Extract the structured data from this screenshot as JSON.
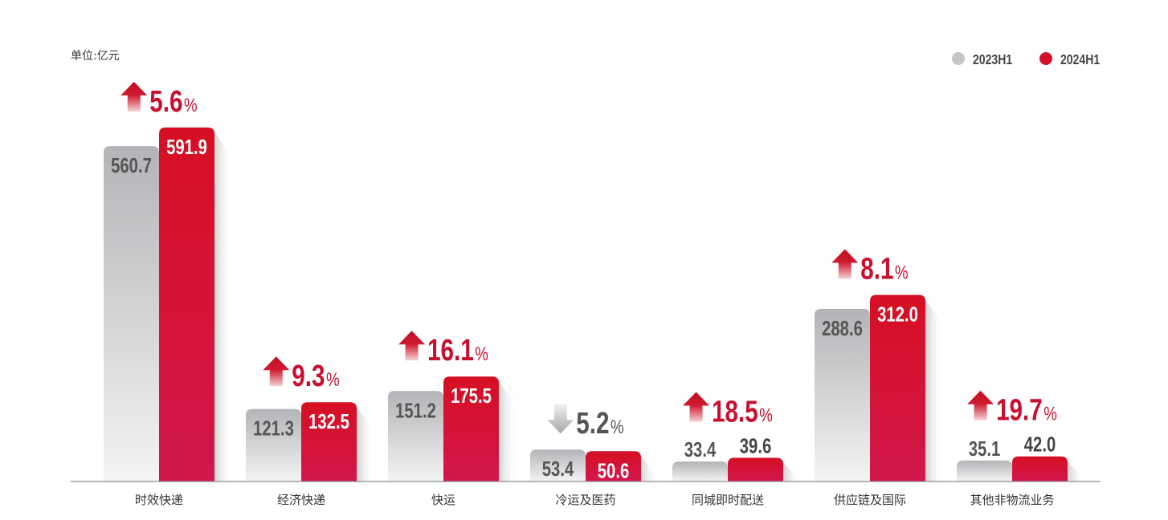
{
  "chart_data": {
    "type": "bar",
    "unit_label": "单位:亿元",
    "categories": [
      "时效快递",
      "经济快递",
      "快运",
      "冷运及医药",
      "同城即时配送",
      "供应链及国际",
      "其他非物流业务"
    ],
    "series": [
      {
        "name": "2023H1",
        "values": [
          560.7,
          121.3,
          151.2,
          53.4,
          33.4,
          288.6,
          35.1
        ],
        "color": "#c4c5c7"
      },
      {
        "name": "2024H1",
        "values": [
          591.9,
          132.5,
          175.5,
          50.6,
          39.6,
          312.0,
          42.0
        ],
        "color": "#d2102a"
      }
    ],
    "growth": {
      "values": [
        5.6,
        9.3,
        16.1,
        5.2,
        18.5,
        8.1,
        19.7
      ],
      "direction": [
        "up",
        "up",
        "up",
        "down",
        "up",
        "up",
        "up"
      ],
      "unit": "%",
      "colors": {
        "up": "#c8102e",
        "down": "#555555"
      }
    },
    "legend_position": "top-right",
    "ylim": [
      0,
      805
    ],
    "grid": false
  }
}
